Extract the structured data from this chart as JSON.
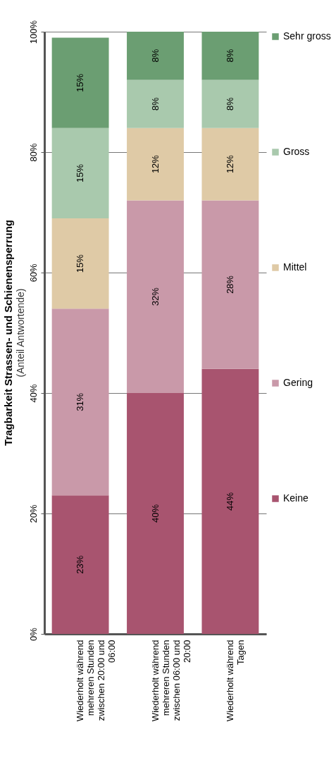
{
  "chart_data": {
    "type": "bar",
    "stacked": true,
    "title": "Tragbarkeit Strassen- und Schienensperrung",
    "subtitle": "(Anteil Antwortende)",
    "categories": [
      "Wiederholt während mehreren Stunden zwischen 20:00 und 06:00",
      "Wiederholt während mehreren Stunden zwischen 06:00 und 20:00",
      "Wiederholt während Tagen"
    ],
    "series": [
      {
        "name": "Keine",
        "color": "#a8546f",
        "values": [
          23,
          40,
          44
        ],
        "value_labels": [
          "23%",
          "40%",
          "44%"
        ]
      },
      {
        "name": "Gering",
        "color": "#c999a9",
        "values": [
          31,
          32,
          28
        ],
        "value_labels": [
          "31%",
          "32%",
          "28%"
        ]
      },
      {
        "name": "Mittel",
        "color": "#dfcaa6",
        "values": [
          15,
          12,
          12
        ],
        "value_labels": [
          "15%",
          "12%",
          "12%"
        ]
      },
      {
        "name": "Gross",
        "color": "#a9c9ad",
        "values": [
          15,
          8,
          8
        ],
        "value_labels": [
          "15%",
          "8%",
          "8%"
        ]
      },
      {
        "name": "Sehr gross",
        "color": "#6b9e72",
        "values": [
          15,
          8,
          8
        ],
        "value_labels": [
          "15%",
          "8%",
          "8%"
        ]
      }
    ],
    "ylim": [
      0,
      100
    ],
    "yticks": [
      {
        "value": 0,
        "label": "0%"
      },
      {
        "value": 20,
        "label": "20%"
      },
      {
        "value": 40,
        "label": "40%"
      },
      {
        "value": 60,
        "label": "60%"
      },
      {
        "value": 80,
        "label": "80%"
      },
      {
        "value": 100,
        "label": "100%"
      }
    ],
    "grid": "y",
    "legend": "right"
  }
}
